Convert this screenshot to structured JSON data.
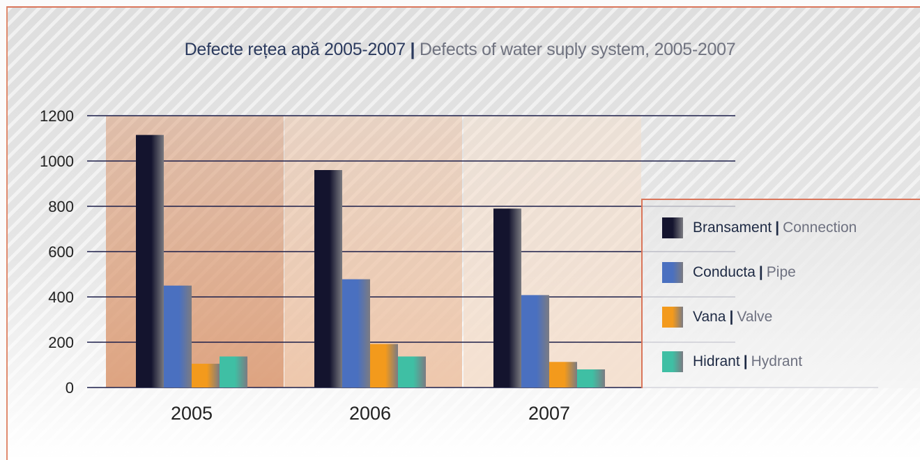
{
  "chart_data": {
    "type": "bar",
    "title_main": "Defecte rețea apă 2005-2007",
    "title_sep": "|",
    "title_sub": "Defects of water suply system, 2005-2007",
    "categories": [
      "2005",
      "2006",
      "2007"
    ],
    "yticks": [
      "0",
      "200",
      "400",
      "600",
      "800",
      "1000",
      "1200"
    ],
    "ylim": [
      0,
      1200
    ],
    "grid": true,
    "legend_position": "right",
    "series": [
      {
        "name": "Bransament",
        "name_en": "Connection",
        "values": [
          1115,
          960,
          790
        ],
        "color_dark": "#14142e",
        "color_light": "#7a7a80"
      },
      {
        "name": "Conducta",
        "name_en": "Pipe",
        "values": [
          450,
          478,
          408
        ],
        "color_dark": "#4a70c0",
        "color_light": "#7b7b82"
      },
      {
        "name": "Vana",
        "name_en": "Valve",
        "values": [
          105,
          192,
          113
        ],
        "color_dark": "#f39a1c",
        "color_light": "#7b7b82"
      },
      {
        "name": "Hidrant",
        "name_en": "Hydrant",
        "values": [
          137,
          137,
          80
        ],
        "color_dark": "#3fbfa4",
        "color_light": "#7b7b82"
      }
    ]
  }
}
